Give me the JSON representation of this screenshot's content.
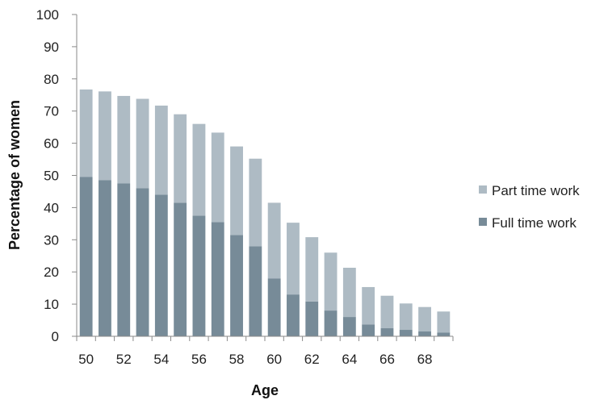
{
  "chart_data": {
    "type": "bar",
    "stacked": true,
    "xlabel": "Age",
    "ylabel": "Percentage of women",
    "ylim": [
      0,
      100
    ],
    "yticks": [
      0,
      10,
      20,
      30,
      40,
      50,
      60,
      70,
      80,
      90,
      100
    ],
    "categories": [
      50,
      51,
      52,
      53,
      54,
      55,
      56,
      57,
      58,
      59,
      60,
      61,
      62,
      63,
      64,
      65,
      66,
      67,
      68,
      69
    ],
    "xtick_labels": [
      "50",
      "52",
      "54",
      "56",
      "58",
      "60",
      "62",
      "64",
      "66",
      "68"
    ],
    "grid": false,
    "legend_position": "right",
    "series": [
      {
        "name": "Full time work",
        "color": "#778b98",
        "values": [
          49.5,
          48.5,
          47.5,
          46,
          44,
          41.5,
          37.5,
          35.5,
          31.5,
          28,
          18,
          13,
          10.8,
          8,
          6,
          3.7,
          2.5,
          2,
          1.5,
          1.2
        ]
      },
      {
        "name": "Part time work",
        "color": "#aebbc4",
        "values": [
          27.2,
          27.6,
          27.2,
          27.8,
          27.7,
          27.5,
          28.5,
          27.8,
          27.5,
          27.2,
          23.5,
          22.3,
          20,
          18,
          15.3,
          11.6,
          10.1,
          8.2,
          7.6,
          6.5
        ]
      }
    ]
  }
}
